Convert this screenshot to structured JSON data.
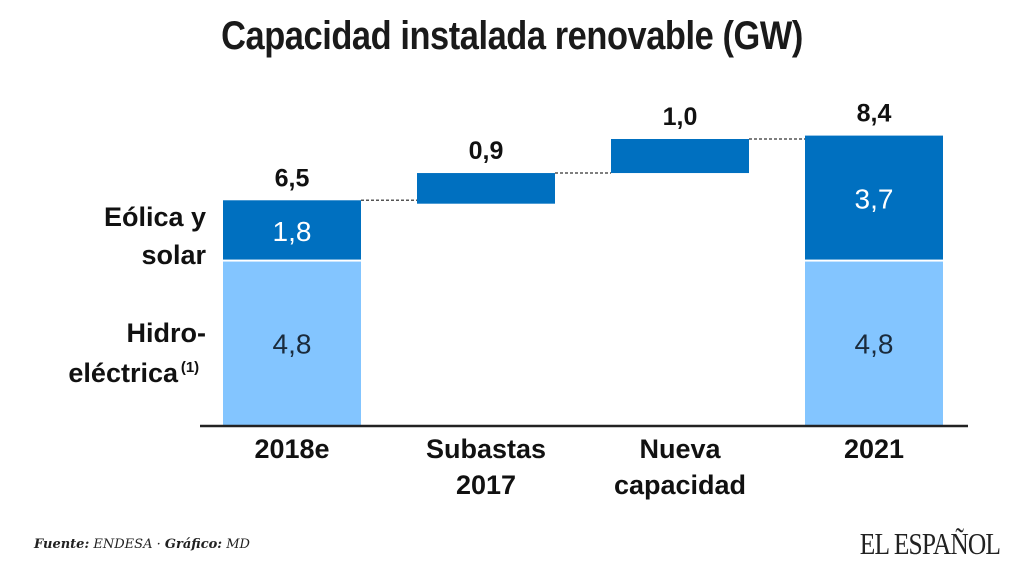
{
  "title": "Capacidad instalada renovable (GW)",
  "chart_data": {
    "type": "waterfall",
    "title": "Capacidad instalada renovable (GW)",
    "categories": [
      "2018e",
      "Subastas 2017",
      "Nueva capacidad",
      "2021"
    ],
    "category_lines": [
      [
        "2018e"
      ],
      [
        "Subastas",
        "2017"
      ],
      [
        "Nueva",
        "capacidad"
      ],
      [
        "2021"
      ]
    ],
    "series": [
      {
        "name": "Hidroeléctrica(1)",
        "color": "#83c5ff",
        "values": [
          4.8,
          null,
          null,
          4.8
        ],
        "labels": [
          "4,8",
          null,
          null,
          "4,8"
        ]
      },
      {
        "name": "Eólica y solar",
        "color": "#0070c0",
        "values": [
          1.8,
          0.9,
          1.0,
          3.7
        ],
        "labels": [
          "1,8",
          null,
          null,
          "3,7"
        ]
      }
    ],
    "increments": [
      {
        "category": "Subastas 2017",
        "base": 6.5,
        "value": 0.9
      },
      {
        "category": "Nueva capacidad",
        "base": 7.4,
        "value": 1.0
      }
    ],
    "totals": [
      6.5,
      0.9,
      1.0,
      8.4
    ],
    "total_labels": [
      "6,5",
      "0,9",
      "1,0",
      "8,4"
    ],
    "legend_labels": [
      {
        "series": "Eólica y solar",
        "lines": [
          "Eólica y",
          "solar"
        ]
      },
      {
        "series": "Hidroeléctrica",
        "lines": [
          "Hidro-",
          "eléctrica"
        ],
        "superscript": "(1)"
      }
    ],
    "connectors": "dotted",
    "ylim": [
      0,
      8.4
    ],
    "xlabel": "",
    "ylabel": "",
    "grid": false
  },
  "footer": {
    "source_label": "Fuente:",
    "source_value": "ENDESA",
    "separator": "·",
    "graphic_label": "Gráfico:",
    "graphic_value": "MD",
    "logo": "EL ESPAÑOL"
  }
}
